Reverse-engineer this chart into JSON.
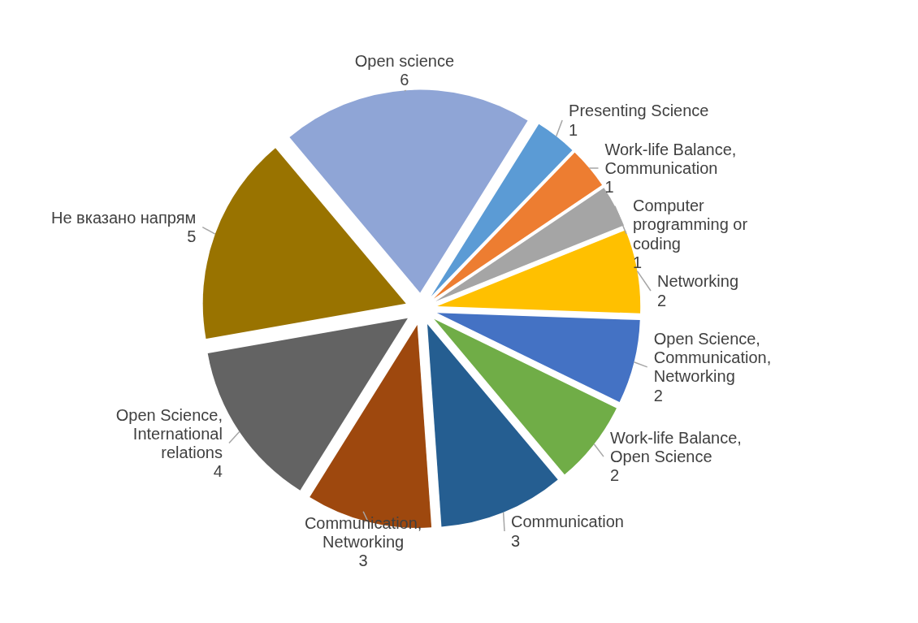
{
  "chart_data": {
    "type": "pie",
    "categories": [
      "Open science",
      "Presenting Science",
      "Work-life Balance, Communication",
      "Computer programming or coding",
      "Networking",
      "Open Science, Communication, Networking",
      "Work-life Balance, Open Science",
      "Communication",
      "Communication, Networking",
      "Open Science, International relations",
      "Не вказано напрям"
    ],
    "values": [
      6,
      1,
      1,
      1,
      2,
      2,
      2,
      3,
      3,
      4,
      5
    ],
    "colors": [
      "#8fa5d6",
      "#5b9bd5",
      "#ed7d31",
      "#a5a5a5",
      "#ffc000",
      "#4472c4",
      "#70ad47",
      "#255e91",
      "#9e480e",
      "#636363",
      "#997300"
    ],
    "data_labels": true
  }
}
